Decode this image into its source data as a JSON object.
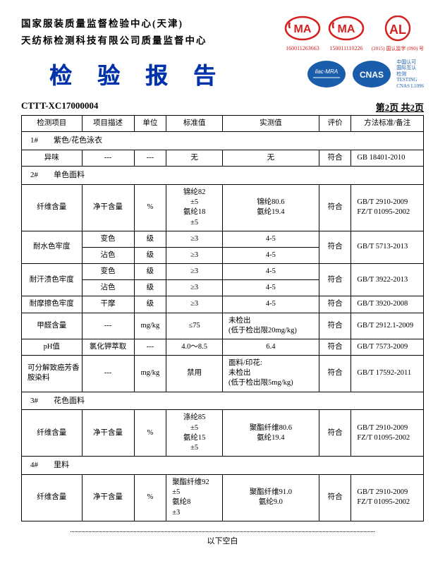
{
  "header": {
    "line1": "国家服装质量监督检验中心(天津)",
    "line2": "天纺标检测科技有限公司质量监督中心",
    "cert1_num": "16001126366​3",
    "cert2_num": "15001111022​6",
    "cert3_text": "(2015) 国认监字 (090) 号",
    "title": "检 验 报 告",
    "cnas_text_1": "中国认可",
    "cnas_text_2": "国际互认",
    "cnas_text_3": "检测",
    "cnas_text_4": "TESTING",
    "cnas_text_5": "CNAS L1096"
  },
  "doc": {
    "id": "CTTT-XC17000004",
    "page": "第2页 共2页"
  },
  "cols": {
    "c1": "检测项目",
    "c2": "项目描述",
    "c3": "单位",
    "c4": "标准值",
    "c5": "实测值",
    "c6": "评价",
    "c7": "方法标准/备注"
  },
  "s1": {
    "header": "1#　　紫色/花色泳衣",
    "r1": {
      "item": "异味",
      "desc": "---",
      "unit": "---",
      "std": "无",
      "meas": "无",
      "eval": "符合",
      "method": "GB 18401-2010"
    }
  },
  "s2": {
    "header": "2#　　单色面料",
    "r1": {
      "item": "纤维含量",
      "desc": "净干含量",
      "unit": "%",
      "std": "锦纶82\n±5\n氨纶18\n±5",
      "meas": "锦纶80.6\n氨纶19.4",
      "eval": "符合",
      "method": "GB/T 2910-2009\nFZ/T 01095-2002"
    },
    "r2": {
      "item": "耐水色牢度",
      "d1": "变色",
      "d2": "沾色",
      "unit": "级",
      "std": "≥3",
      "m1": "4-5",
      "m2": "4-5",
      "eval": "符合",
      "method": "GB/T 5713-2013"
    },
    "r3": {
      "item": "耐汗渍色牢度",
      "d1": "变色",
      "d2": "沾色",
      "unit": "级",
      "std": "≥3",
      "m1": "4-5",
      "m2": "4-5",
      "eval": "符合",
      "method": "GB/T 3922-2013"
    },
    "r4": {
      "item": "耐摩擦色牢度",
      "desc": "干摩",
      "unit": "级",
      "std": "≥3",
      "meas": "4-5",
      "eval": "符合",
      "method": "GB/T 3920-2008"
    },
    "r5": {
      "item": "甲醛含量",
      "desc": "---",
      "unit": "mg/kg",
      "std": "≤75",
      "meas": "未检出\n(低于检出限20mg/kg)",
      "eval": "符合",
      "method": "GB/T 2912.1-2009"
    },
    "r6": {
      "item": "pH值",
      "desc": "氯化钾萃取",
      "unit": "---",
      "std": "4.0～8.5",
      "meas": "6.4",
      "eval": "符合",
      "method": "GB/T 7573-2009"
    },
    "r7": {
      "item": "可分解致癌芳香胺染料",
      "desc": "---",
      "unit": "mg/kg",
      "std": "禁用",
      "meas": "面料/印花:\n未检出\n(低于检出限5mg/kg)",
      "eval": "符合",
      "method": "GB/T 17592-2011"
    }
  },
  "s3": {
    "header": "3#　　花色面料",
    "r1": {
      "item": "纤维含量",
      "desc": "净干含量",
      "unit": "%",
      "std": "涤纶85\n±5\n氨纶15\n±5",
      "meas": "聚酯纤维80.6\n氨纶19.4",
      "eval": "符合",
      "method": "GB/T 2910-2009\nFZ/T 01095-2002"
    }
  },
  "s4": {
    "header": "4#　　里料",
    "r1": {
      "item": "纤维含量",
      "desc": "净干含量",
      "unit": "%",
      "std": "聚酯纤维92\n±5\n氨纶8\n±3",
      "meas": "聚酯纤维91.0\n氨纶9.0",
      "eval": "符合",
      "method": "GB/T 2910-2009\nFZ/T 01095-2002"
    }
  },
  "footer": "以下空白"
}
